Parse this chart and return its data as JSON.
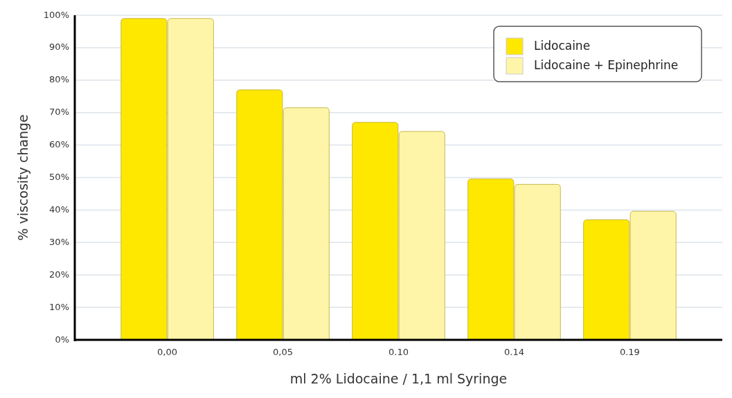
{
  "chart_data": {
    "type": "bar",
    "xlabel": "ml 2% Lidocaine / 1,1 ml Syringe",
    "ylabel": "% viscosity change",
    "categories": [
      "0,00",
      "0,05",
      "0.10",
      "0.14",
      "0.19"
    ],
    "series": [
      {
        "name": "Lidocaine",
        "color": "#ffe800",
        "values": [
          99,
          77,
          67,
          49.6,
          37
        ]
      },
      {
        "name": "Lidocaine + Epinephrine",
        "color": "#fff5a8",
        "values": [
          99,
          71.5,
          64.2,
          47.9,
          39.6
        ]
      }
    ],
    "ylim": [
      0,
      100
    ],
    "yticks": [
      {
        "value": 0,
        "label": "0%"
      },
      {
        "value": 10,
        "label": "10%"
      },
      {
        "value": 20,
        "label": "20%"
      },
      {
        "value": 30,
        "label": "30%"
      },
      {
        "value": 40,
        "label": "40%"
      },
      {
        "value": 50,
        "label": "50%"
      },
      {
        "value": 60,
        "label": "60%"
      },
      {
        "value": 70,
        "label": "70%"
      },
      {
        "value": 80,
        "label": "80%"
      },
      {
        "value": 90,
        "label": "90%"
      },
      {
        "value": 100,
        "label": "100%"
      }
    ],
    "grid": "y",
    "legend": "top right"
  }
}
